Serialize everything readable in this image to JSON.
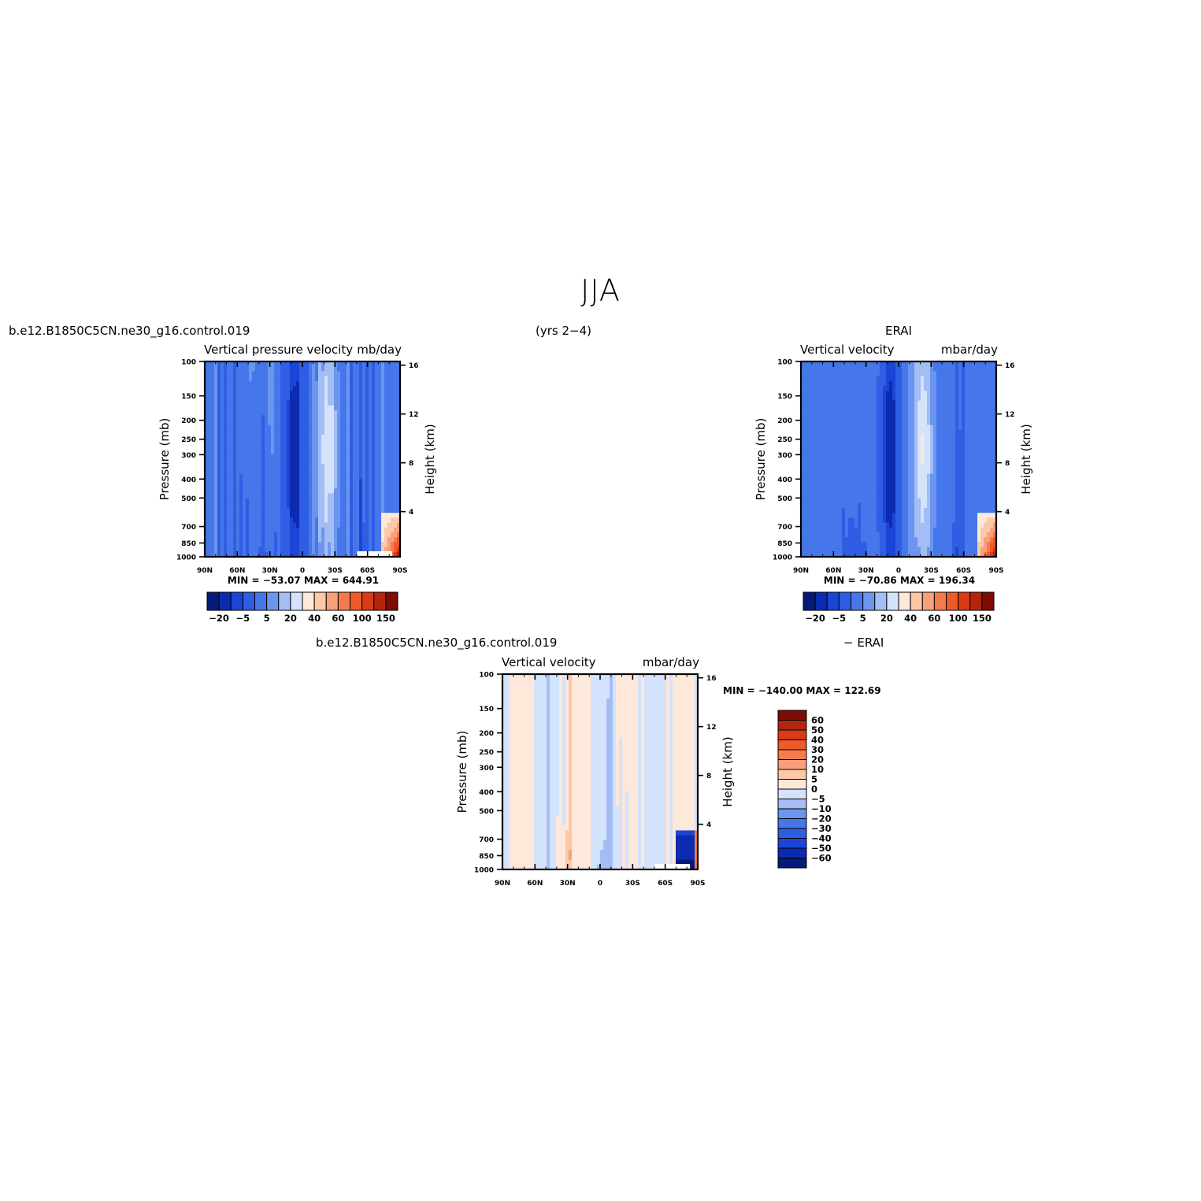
{
  "title": "JJA",
  "top_left_label": "b.e12.B1850C5CN.ne30_g16.control.019",
  "years_label": "(yrs 2−4)",
  "top_right_label": "ERAI",
  "bottom_left_label": "b.e12.B1850C5CN.ne30_g16.control.019",
  "bottom_right_label": "− ERAI",
  "colors": {
    "abs": [
      "#061a7a",
      "#0b2bb0",
      "#1a45d6",
      "#2f5de3",
      "#4577ea",
      "#6b95ef",
      "#a4bdf5",
      "#d3e3fb",
      "#fde8da",
      "#fcc8a8",
      "#f8a07c",
      "#f57a4e",
      "#ee5a2a",
      "#d93b16",
      "#b3260d",
      "#800b05"
    ],
    "diff": [
      "#061a7a",
      "#0b2bb0",
      "#1a45d6",
      "#2f5de3",
      "#4577ea",
      "#6b95ef",
      "#a4bdf5",
      "#d3e3fb",
      "#fde8da",
      "#fcc8a8",
      "#f8a07c",
      "#f57a4e",
      "#ee5a2a",
      "#d93b16",
      "#b3260d",
      "#800b05"
    ]
  },
  "panels": [
    {
      "id": "model",
      "left_title": "Vertical  pressure  velocity",
      "right_title": "mb/day",
      "ylabel": "Pressure  (mb)",
      "y2label": "Height  (km)",
      "stats": "MIN  =  −53.07    MAX  =  644.91",
      "colorbar_labels": [
        "−20",
        "−5",
        "5",
        "20",
        "40",
        "60",
        "100",
        "150"
      ]
    },
    {
      "id": "obs",
      "left_title": "Vertical  velocity",
      "right_title": "mbar/day",
      "ylabel": "Pressure  (mb)",
      "y2label": "Height  (km)",
      "stats": "MIN  =  −70.86    MAX  =  196.34",
      "colorbar_labels": [
        "−20",
        "−5",
        "5",
        "20",
        "40",
        "60",
        "100",
        "150"
      ]
    },
    {
      "id": "diff",
      "left_title": "Vertical  velocity",
      "right_title": "mbar/day",
      "ylabel": "Pressure  (mb)",
      "y2label": "Height  (km)",
      "stats": "MIN  =  −140.00    MAX  =  122.69",
      "colorbar_labels": [
        "60",
        "50",
        "40",
        "30",
        "20",
        "10",
        "5",
        "0",
        "−5",
        "−10",
        "−20",
        "−30",
        "−40",
        "−50",
        "−60"
      ]
    }
  ],
  "chart_data": [
    {
      "type": "heatmap",
      "name": "model",
      "xticks": [
        "90N",
        "60N",
        "30N",
        "0",
        "30S",
        "60S",
        "90S"
      ],
      "x_range": [
        90,
        -90
      ],
      "yticks": [
        100,
        150,
        200,
        250,
        300,
        400,
        500,
        700,
        850,
        1000
      ],
      "y_range": [
        100,
        1000
      ],
      "y_log": true,
      "y2ticks": [
        16,
        12,
        8,
        4
      ],
      "stats": {
        "min": -53.07,
        "max": 644.91
      }
    },
    {
      "type": "heatmap",
      "name": "obs",
      "xticks": [
        "90N",
        "60N",
        "30N",
        "0",
        "30S",
        "60S",
        "90S"
      ],
      "x_range": [
        90,
        -90
      ],
      "yticks": [
        100,
        150,
        200,
        250,
        300,
        400,
        500,
        700,
        850,
        1000
      ],
      "y_range": [
        100,
        1000
      ],
      "y_log": true,
      "y2ticks": [
        16,
        12,
        8,
        4
      ],
      "stats": {
        "min": -70.86,
        "max": 196.34
      }
    },
    {
      "type": "heatmap",
      "name": "diff",
      "xticks": [
        "90N",
        "60N",
        "30N",
        "0",
        "30S",
        "60S",
        "90S"
      ],
      "x_range": [
        90,
        -90
      ],
      "yticks": [
        100,
        150,
        200,
        250,
        300,
        400,
        500,
        700,
        850,
        1000
      ],
      "y_range": [
        100,
        1000
      ],
      "y_log": true,
      "y2ticks": [
        16,
        12,
        8,
        4
      ],
      "stats": {
        "min": -140.0,
        "max": 122.69
      }
    }
  ]
}
